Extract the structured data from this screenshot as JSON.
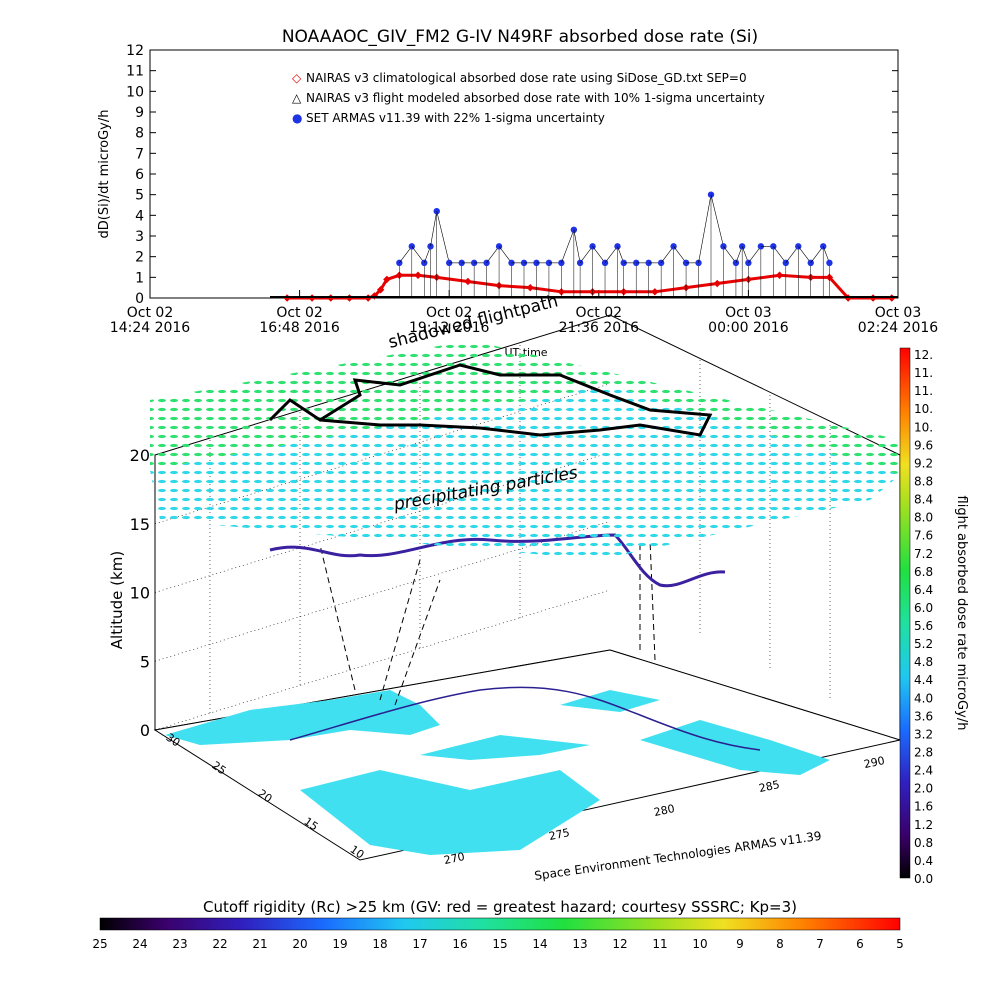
{
  "title": "NOAAAOC_GIV_FM2 G-IV    N49RF  absorbed dose rate (Si)",
  "colors": {
    "climatological": "#e60000",
    "flight_modeled": "#000000",
    "armas": "#1e32e6",
    "land": "#40e0f0",
    "grid": "#000000"
  },
  "chart_data": [
    {
      "type": "scatter",
      "ylabel": "dD(Si)/dt microGy/h",
      "xlabel": "UT time",
      "ylim": [
        0,
        12
      ],
      "y_ticks": [
        "0",
        "1",
        "2",
        "3",
        "4",
        "5",
        "6",
        "7",
        "8",
        "9",
        "10",
        "11",
        "12"
      ],
      "x_ticks": [
        {
          "date": "Oct 02",
          "time": "14:24 2016"
        },
        {
          "date": "Oct 02",
          "time": "16:48 2016"
        },
        {
          "date": "Oct 02",
          "time": "19:12 2016"
        },
        {
          "date": "Oct 02",
          "time": "21:36 2016"
        },
        {
          "date": "Oct 03",
          "time": "00:00 2016"
        },
        {
          "date": "Oct 03",
          "time": "02:24 2016"
        }
      ],
      "legend": [
        {
          "symbol": "◇",
          "label": "NAIRAS v3 climatological absorbed dose rate using SiDose_GD.txt SEP=0",
          "color": "#e60000"
        },
        {
          "symbol": "△",
          "label": "NAIRAS v3 flight modeled absorbed dose rate with 10% 1-sigma uncertainty",
          "color": "#000000"
        },
        {
          "symbol": "●",
          "label": "SET ARMAS v11.39 with 22% 1-sigma uncertainty",
          "color": "#1e32e6"
        }
      ],
      "series": [
        {
          "name": "NAIRAS v3 climatological absorbed dose rate using SiDose_GD.txt SEP=0",
          "x_hours": [
            16.6,
            17.0,
            17.3,
            17.6,
            17.9,
            18.0,
            18.1,
            18.2,
            18.4,
            18.7,
            19.0,
            19.5,
            20.0,
            20.5,
            21.0,
            21.5,
            22.0,
            22.5,
            23.0,
            23.5,
            0.0,
            0.5,
            1.0,
            1.3,
            1.6,
            2.0,
            2.3
          ],
          "values": [
            0,
            0,
            0,
            0,
            0,
            0.1,
            0.4,
            0.9,
            1.1,
            1.1,
            1.0,
            0.8,
            0.6,
            0.5,
            0.3,
            0.3,
            0.3,
            0.3,
            0.5,
            0.7,
            0.9,
            1.1,
            1.0,
            1.0,
            0,
            0,
            0
          ]
        },
        {
          "name": "SET ARMAS v11.39 with 22% 1-sigma uncertainty",
          "x_hours": [
            18.4,
            18.6,
            18.8,
            18.9,
            19.0,
            19.2,
            19.4,
            19.6,
            19.8,
            20.0,
            20.2,
            20.4,
            20.6,
            20.8,
            21.0,
            21.2,
            21.3,
            21.5,
            21.7,
            21.9,
            22.0,
            22.2,
            22.4,
            22.6,
            22.8,
            23.0,
            23.2,
            23.4,
            23.6,
            23.8,
            23.9,
            0.0,
            0.2,
            0.4,
            0.6,
            0.8,
            1.0,
            1.2,
            1.3
          ],
          "values": [
            1.7,
            2.5,
            1.7,
            2.5,
            4.2,
            1.7,
            1.7,
            1.7,
            1.7,
            2.5,
            1.7,
            1.7,
            1.7,
            1.7,
            1.7,
            3.3,
            1.7,
            2.5,
            1.7,
            2.5,
            1.7,
            1.7,
            1.7,
            1.7,
            2.5,
            1.7,
            1.7,
            5.0,
            2.5,
            1.7,
            2.5,
            1.7,
            2.5,
            2.5,
            1.7,
            2.5,
            1.7,
            2.5,
            1.7
          ]
        }
      ]
    },
    {
      "type": "3d-map",
      "zlabel": "Altitude (km)",
      "z_ticks": [
        "0",
        "5",
        "10",
        "15",
        "20"
      ],
      "lat_ticks": [
        "10",
        "15",
        "20",
        "25",
        "30"
      ],
      "lon_ticks": [
        "270",
        "275",
        "280",
        "285",
        "290"
      ],
      "annotations": [
        "shadowed flightpath",
        "precipitating particles"
      ],
      "credit": "Space Environment Technologies ARMAS v11.39"
    }
  ],
  "colorbar_right": {
    "label": "flight absorbed dose rate microGy/h",
    "ticks": [
      "12.",
      "11.",
      "11.",
      "10.",
      "10.",
      "9.6",
      "9.2",
      "8.8",
      "8.4",
      "8.0",
      "7.6",
      "7.2",
      "6.8",
      "6.4",
      "6.0",
      "5.6",
      "5.2",
      "4.8",
      "4.4",
      "4.0",
      "3.6",
      "3.2",
      "2.8",
      "2.4",
      "2.0",
      "1.6",
      "1.2",
      "0.8",
      "0.4",
      "0.0"
    ]
  },
  "colorbar_bottom": {
    "label": "Cutoff rigidity (Rc) >25 km (GV: red = greatest hazard; courtesy SSSRC; Kp=3)",
    "ticks": [
      "25",
      "24",
      "23",
      "22",
      "21",
      "20",
      "19",
      "18",
      "17",
      "16",
      "15",
      "14",
      "13",
      "12",
      "11",
      "10",
      "9",
      "8",
      "7",
      "6",
      "5"
    ]
  }
}
